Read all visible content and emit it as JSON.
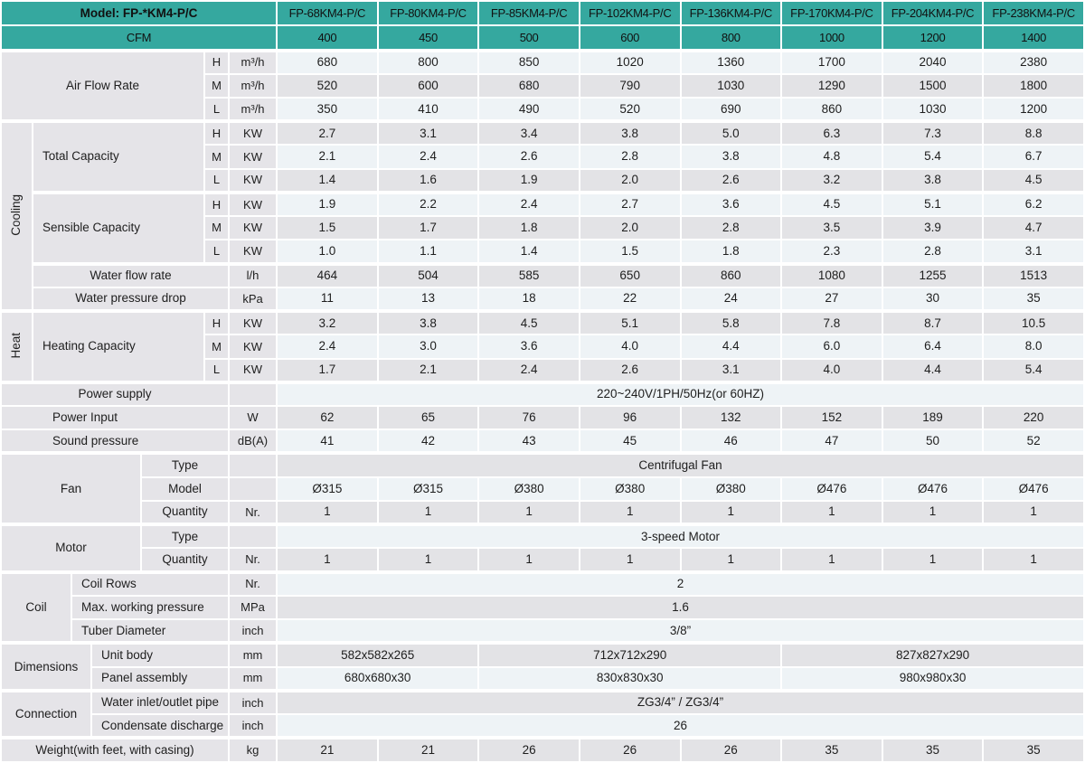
{
  "title": "Model: FP-*KM4-P/C",
  "colors": {
    "header_teal": "#35a89f",
    "row_light": "#eef3f6",
    "row_gray": "#e3e3e6",
    "label_gray": "#e5e4e8",
    "grid_white": "#ffffff",
    "text": "#1e1e1e"
  },
  "table": {
    "rows": [
      {
        "hdr": true,
        "cells": [
          {
            "t": "Model: FP-*KM4-P/C",
            "k": "headb",
            "cs": 7
          },
          {
            "t": "FP-68KM4-P/C",
            "k": "head"
          },
          {
            "t": "FP-80KM4-P/C",
            "k": "head"
          },
          {
            "t": "FP-85KM4-P/C",
            "k": "head"
          },
          {
            "t": "FP-102KM4-P/C",
            "k": "head"
          },
          {
            "t": "FP-136KM4-P/C",
            "k": "head"
          },
          {
            "t": "FP-170KM4-P/C",
            "k": "head"
          },
          {
            "t": "FP-204KM4-P/C",
            "k": "head"
          },
          {
            "t": "FP-238KM4-P/C",
            "k": "head"
          }
        ]
      },
      {
        "hdr": true,
        "cells": [
          {
            "t": "CFM",
            "k": "head",
            "cs": 7
          },
          {
            "t": "400",
            "k": "head"
          },
          {
            "t": "450",
            "k": "head"
          },
          {
            "t": "500",
            "k": "head"
          },
          {
            "t": "600",
            "k": "head"
          },
          {
            "t": "800",
            "k": "head"
          },
          {
            "t": "1000",
            "k": "head"
          },
          {
            "t": "1200",
            "k": "head"
          },
          {
            "t": "1400",
            "k": "head"
          }
        ]
      },
      {
        "shade": "L",
        "sect": true,
        "cells": [
          {
            "t": "Air Flow Rate",
            "k": "lbl",
            "cs": 5,
            "rs": 3
          },
          {
            "t": "H",
            "k": "unit"
          },
          {
            "t": "m³/h",
            "k": "unit"
          },
          {
            "t": "680"
          },
          {
            "t": "800"
          },
          {
            "t": "850"
          },
          {
            "t": "1020"
          },
          {
            "t": "1360"
          },
          {
            "t": "1700"
          },
          {
            "t": "2040"
          },
          {
            "t": "2380"
          }
        ]
      },
      {
        "shade": "G",
        "cells": [
          {
            "t": "M",
            "k": "unit"
          },
          {
            "t": "m³/h",
            "k": "unit"
          },
          {
            "t": "520"
          },
          {
            "t": "600"
          },
          {
            "t": "680"
          },
          {
            "t": "790"
          },
          {
            "t": "1030"
          },
          {
            "t": "1290"
          },
          {
            "t": "1500"
          },
          {
            "t": "1800"
          }
        ]
      },
      {
        "shade": "L",
        "cells": [
          {
            "t": "L",
            "k": "unit"
          },
          {
            "t": "m³/h",
            "k": "unit"
          },
          {
            "t": "350"
          },
          {
            "t": "410"
          },
          {
            "t": "490"
          },
          {
            "t": "520"
          },
          {
            "t": "690"
          },
          {
            "t": "860"
          },
          {
            "t": "1030"
          },
          {
            "t": "1200"
          }
        ]
      },
      {
        "shade": "G",
        "sect": true,
        "cells": [
          {
            "t": "Cooling",
            "k": "vlbl",
            "rs": 8
          },
          {
            "t": "Total Capacity",
            "k": "lbll",
            "cs": 4,
            "rs": 3
          },
          {
            "t": "H",
            "k": "unit"
          },
          {
            "t": "KW",
            "k": "unit"
          },
          {
            "t": "2.7"
          },
          {
            "t": "3.1"
          },
          {
            "t": "3.4"
          },
          {
            "t": "3.8"
          },
          {
            "t": "5.0"
          },
          {
            "t": "6.3"
          },
          {
            "t": "7.3"
          },
          {
            "t": "8.8"
          }
        ]
      },
      {
        "shade": "L",
        "cells": [
          {
            "t": "M",
            "k": "unit"
          },
          {
            "t": "KW",
            "k": "unit"
          },
          {
            "t": "2.1"
          },
          {
            "t": "2.4"
          },
          {
            "t": "2.6"
          },
          {
            "t": "2.8"
          },
          {
            "t": "3.8"
          },
          {
            "t": "4.8"
          },
          {
            "t": "5.4"
          },
          {
            "t": "6.7"
          }
        ]
      },
      {
        "shade": "G",
        "cells": [
          {
            "t": "L",
            "k": "unit"
          },
          {
            "t": "KW",
            "k": "unit"
          },
          {
            "t": "1.4"
          },
          {
            "t": "1.6"
          },
          {
            "t": "1.9"
          },
          {
            "t": "2.0"
          },
          {
            "t": "2.6"
          },
          {
            "t": "3.2"
          },
          {
            "t": "3.8"
          },
          {
            "t": "4.5"
          }
        ]
      },
      {
        "shade": "L",
        "sect": true,
        "cells": [
          {
            "t": "Sensible Capacity",
            "k": "lbll",
            "cs": 4,
            "rs": 3
          },
          {
            "t": "H",
            "k": "unit"
          },
          {
            "t": "KW",
            "k": "unit"
          },
          {
            "t": "1.9"
          },
          {
            "t": "2.2"
          },
          {
            "t": "2.4"
          },
          {
            "t": "2.7"
          },
          {
            "t": "3.6"
          },
          {
            "t": "4.5"
          },
          {
            "t": "5.1"
          },
          {
            "t": "6.2"
          }
        ]
      },
      {
        "shade": "G",
        "cells": [
          {
            "t": "M",
            "k": "unit"
          },
          {
            "t": "KW",
            "k": "unit"
          },
          {
            "t": "1.5"
          },
          {
            "t": "1.7"
          },
          {
            "t": "1.8"
          },
          {
            "t": "2.0"
          },
          {
            "t": "2.8"
          },
          {
            "t": "3.5"
          },
          {
            "t": "3.9"
          },
          {
            "t": "4.7"
          }
        ]
      },
      {
        "shade": "L",
        "cells": [
          {
            "t": "L",
            "k": "unit"
          },
          {
            "t": "KW",
            "k": "unit"
          },
          {
            "t": "1.0"
          },
          {
            "t": "1.1"
          },
          {
            "t": "1.4"
          },
          {
            "t": "1.5"
          },
          {
            "t": "1.8"
          },
          {
            "t": "2.3"
          },
          {
            "t": "2.8"
          },
          {
            "t": "3.1"
          }
        ]
      },
      {
        "shade": "G",
        "sect": true,
        "cells": [
          {
            "t": "Water flow rate",
            "k": "lbl",
            "cs": 5
          },
          {
            "t": "l/h",
            "k": "unit"
          },
          {
            "t": "464"
          },
          {
            "t": "504"
          },
          {
            "t": "585"
          },
          {
            "t": "650"
          },
          {
            "t": "860"
          },
          {
            "t": "1080"
          },
          {
            "t": "1255"
          },
          {
            "t": "1513"
          }
        ]
      },
      {
        "shade": "L",
        "cells": [
          {
            "t": "Water pressure drop",
            "k": "lbl",
            "cs": 5
          },
          {
            "t": "kPa",
            "k": "unit"
          },
          {
            "t": "11"
          },
          {
            "t": "13"
          },
          {
            "t": "18"
          },
          {
            "t": "22"
          },
          {
            "t": "24"
          },
          {
            "t": "27"
          },
          {
            "t": "30"
          },
          {
            "t": "35"
          }
        ]
      },
      {
        "shade": "G",
        "sect": true,
        "cells": [
          {
            "t": "Heat",
            "k": "vlbl",
            "rs": 3
          },
          {
            "t": "Heating Capacity",
            "k": "lbll",
            "cs": 4,
            "rs": 3
          },
          {
            "t": "H",
            "k": "unit"
          },
          {
            "t": "KW",
            "k": "unit"
          },
          {
            "t": "3.2"
          },
          {
            "t": "3.8"
          },
          {
            "t": "4.5"
          },
          {
            "t": "5.1"
          },
          {
            "t": "5.8"
          },
          {
            "t": "7.8"
          },
          {
            "t": "8.7"
          },
          {
            "t": "10.5"
          }
        ]
      },
      {
        "shade": "L",
        "cells": [
          {
            "t": "M",
            "k": "unit"
          },
          {
            "t": "KW",
            "k": "unit"
          },
          {
            "t": "2.4"
          },
          {
            "t": "3.0"
          },
          {
            "t": "3.6"
          },
          {
            "t": "4.0"
          },
          {
            "t": "4.4"
          },
          {
            "t": "6.0"
          },
          {
            "t": "6.4"
          },
          {
            "t": "8.0"
          }
        ]
      },
      {
        "shade": "G",
        "cells": [
          {
            "t": "L",
            "k": "unit"
          },
          {
            "t": "KW",
            "k": "unit"
          },
          {
            "t": "1.7"
          },
          {
            "t": "2.1"
          },
          {
            "t": "2.4"
          },
          {
            "t": "2.6"
          },
          {
            "t": "3.1"
          },
          {
            "t": "4.0"
          },
          {
            "t": "4.4"
          },
          {
            "t": "5.4"
          }
        ]
      },
      {
        "shade": "L",
        "sect": true,
        "cells": [
          {
            "t": "Power supply",
            "k": "lbl",
            "cs": 6
          },
          {
            "t": "",
            "k": "unit"
          },
          {
            "t": "220~240V/1PH/50Hz(or 60HZ)",
            "k": "dspan",
            "cs": 8
          }
        ]
      },
      {
        "shade": "G",
        "cells": [
          {
            "t": "Power Input",
            "k": "lblp",
            "cs": 6
          },
          {
            "t": "W",
            "k": "unit"
          },
          {
            "t": "62"
          },
          {
            "t": "65"
          },
          {
            "t": "76"
          },
          {
            "t": "96"
          },
          {
            "t": "132"
          },
          {
            "t": "152"
          },
          {
            "t": "189"
          },
          {
            "t": "220"
          }
        ]
      },
      {
        "shade": "L",
        "cells": [
          {
            "t": "Sound pressure",
            "k": "lblp",
            "cs": 6
          },
          {
            "t": "dB(A)",
            "k": "unit"
          },
          {
            "t": "41"
          },
          {
            "t": "42"
          },
          {
            "t": "43"
          },
          {
            "t": "45"
          },
          {
            "t": "46"
          },
          {
            "t": "47"
          },
          {
            "t": "50"
          },
          {
            "t": "52"
          }
        ]
      },
      {
        "shade": "G",
        "sect": true,
        "cells": [
          {
            "t": "Fan",
            "k": "lbl",
            "cs": 4,
            "rs": 3
          },
          {
            "t": "Type",
            "k": "lbl",
            "cs": 2
          },
          {
            "t": "",
            "k": "unit"
          },
          {
            "t": "Centrifugal Fan",
            "k": "dspan",
            "cs": 8
          }
        ]
      },
      {
        "shade": "L",
        "cells": [
          {
            "t": "Model",
            "k": "lbl",
            "cs": 2
          },
          {
            "t": "",
            "k": "unit"
          },
          {
            "t": "Ø315"
          },
          {
            "t": "Ø315"
          },
          {
            "t": "Ø380"
          },
          {
            "t": "Ø380"
          },
          {
            "t": "Ø380"
          },
          {
            "t": "Ø476"
          },
          {
            "t": "Ø476"
          },
          {
            "t": "Ø476"
          }
        ]
      },
      {
        "shade": "G",
        "cells": [
          {
            "t": "Quantity",
            "k": "lbl",
            "cs": 2
          },
          {
            "t": "Nr.",
            "k": "unit"
          },
          {
            "t": "1"
          },
          {
            "t": "1"
          },
          {
            "t": "1"
          },
          {
            "t": "1"
          },
          {
            "t": "1"
          },
          {
            "t": "1"
          },
          {
            "t": "1"
          },
          {
            "t": "1"
          }
        ]
      },
      {
        "shade": "L",
        "sect": true,
        "cells": [
          {
            "t": "Motor",
            "k": "lbl",
            "cs": 4,
            "rs": 2
          },
          {
            "t": "Type",
            "k": "lbl",
            "cs": 2
          },
          {
            "t": "",
            "k": "unit"
          },
          {
            "t": "3-speed Motor",
            "k": "dspan",
            "cs": 8
          }
        ]
      },
      {
        "shade": "G",
        "cells": [
          {
            "t": "Quantity",
            "k": "lbl",
            "cs": 2
          },
          {
            "t": "Nr.",
            "k": "unit"
          },
          {
            "t": "1"
          },
          {
            "t": "1"
          },
          {
            "t": "1"
          },
          {
            "t": "1"
          },
          {
            "t": "1"
          },
          {
            "t": "1"
          },
          {
            "t": "1"
          },
          {
            "t": "1"
          }
        ]
      },
      {
        "shade": "L",
        "sect": true,
        "cells": [
          {
            "t": "Coil",
            "k": "lbl",
            "cs": 2,
            "rs": 3
          },
          {
            "t": "Coil Rows",
            "k": "lbll",
            "cs": 4
          },
          {
            "t": "Nr.",
            "k": "unit"
          },
          {
            "t": "2",
            "k": "dspan",
            "cs": 8
          }
        ]
      },
      {
        "shade": "G",
        "cells": [
          {
            "t": "Max. working pressure",
            "k": "lbll",
            "cs": 4
          },
          {
            "t": "MPa",
            "k": "unit"
          },
          {
            "t": "1.6",
            "k": "dspan",
            "cs": 8
          }
        ]
      },
      {
        "shade": "L",
        "cells": [
          {
            "t": "Tuber Diameter",
            "k": "lbll",
            "cs": 4
          },
          {
            "t": "inch",
            "k": "unit"
          },
          {
            "t": "3/8”",
            "k": "dspan",
            "cs": 8
          }
        ]
      },
      {
        "shade": "G",
        "sect": true,
        "cells": [
          {
            "t": "Dimensions",
            "k": "lbl",
            "cs": 3,
            "rs": 2
          },
          {
            "t": "Unit body",
            "k": "lbll",
            "cs": 3
          },
          {
            "t": "mm",
            "k": "unit"
          },
          {
            "t": "582x582x265",
            "k": "dspan",
            "cs": 2
          },
          {
            "t": "712x712x290",
            "k": "dspan",
            "cs": 3
          },
          {
            "t": "827x827x290",
            "k": "dspan",
            "cs": 3
          }
        ]
      },
      {
        "shade": "L",
        "cells": [
          {
            "t": "Panel assembly",
            "k": "lbll",
            "cs": 3
          },
          {
            "t": "mm",
            "k": "unit"
          },
          {
            "t": "680x680x30",
            "k": "dspan",
            "cs": 2
          },
          {
            "t": "830x830x30",
            "k": "dspan",
            "cs": 3
          },
          {
            "t": "980x980x30",
            "k": "dspan",
            "cs": 3
          }
        ]
      },
      {
        "shade": "G",
        "sect": true,
        "cells": [
          {
            "t": "Connection",
            "k": "lbl",
            "cs": 3,
            "rs": 2
          },
          {
            "t": "Water inlet/outlet pipe",
            "k": "lbll",
            "cs": 3
          },
          {
            "t": "inch",
            "k": "unit"
          },
          {
            "t": "ZG3/4” / ZG3/4”",
            "k": "dspan",
            "cs": 8
          }
        ]
      },
      {
        "shade": "L",
        "cells": [
          {
            "t": "Condensate discharge",
            "k": "lbll",
            "cs": 3
          },
          {
            "t": "inch",
            "k": "unit"
          },
          {
            "t": "26",
            "k": "dspan",
            "cs": 8
          }
        ]
      },
      {
        "shade": "G",
        "sect": true,
        "cells": [
          {
            "t": "Weight(with feet, with casing)",
            "k": "lbl",
            "cs": 6
          },
          {
            "t": "kg",
            "k": "unit"
          },
          {
            "t": "21"
          },
          {
            "t": "21"
          },
          {
            "t": "26"
          },
          {
            "t": "26"
          },
          {
            "t": "26"
          },
          {
            "t": "35"
          },
          {
            "t": "35"
          },
          {
            "t": "35"
          }
        ]
      }
    ]
  }
}
